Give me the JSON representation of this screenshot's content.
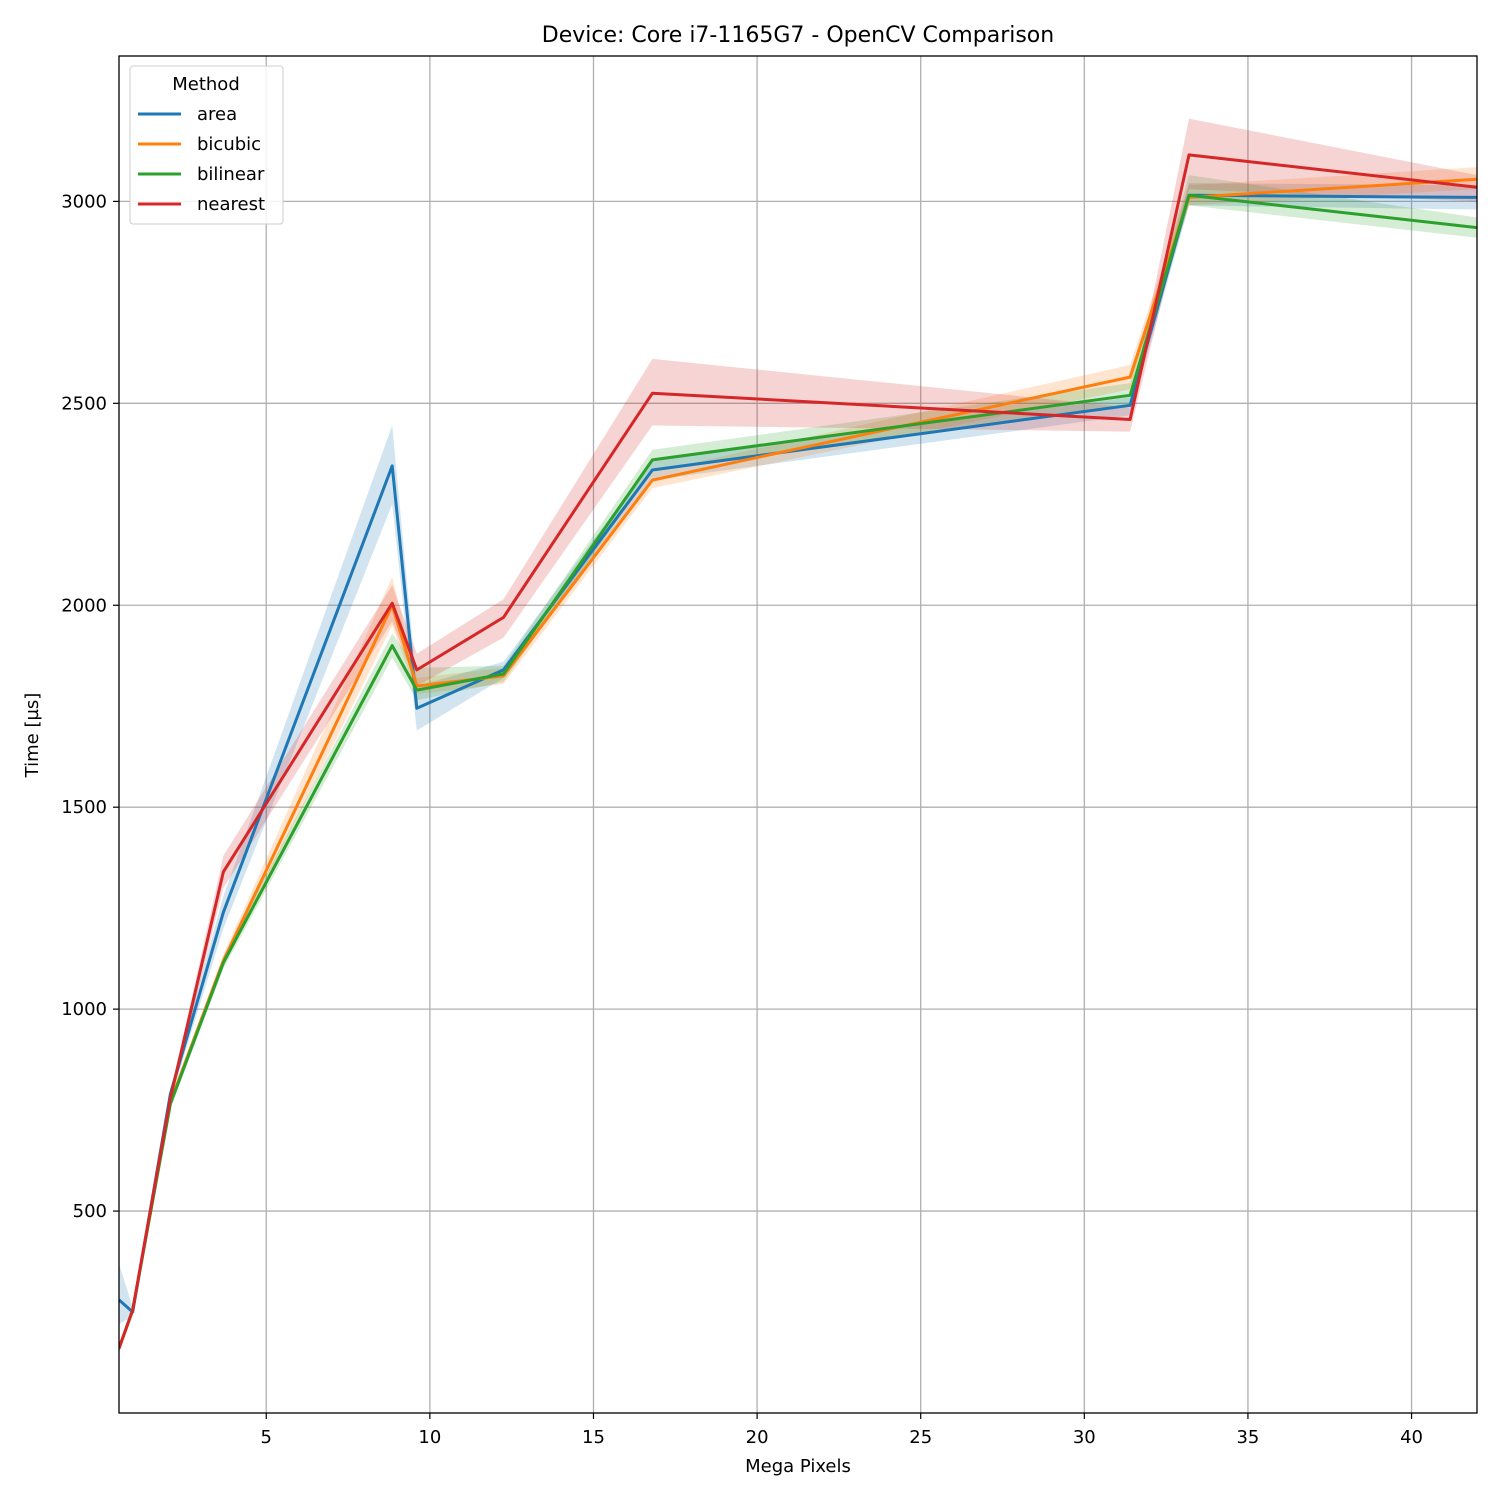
{
  "chart_data": {
    "type": "line",
    "title": "Device: Core i7-1165G7 - OpenCV Comparison",
    "xlabel": "Mega Pixels",
    "ylabel": "Time [µs]",
    "xlim": [
      0.5,
      42
    ],
    "ylim": [
      0,
      3360
    ],
    "xticks": [
      5,
      10,
      15,
      20,
      25,
      30,
      35,
      40
    ],
    "yticks": [
      500,
      1000,
      1500,
      2000,
      2500,
      3000
    ],
    "grid": true,
    "legend": {
      "title": "Method",
      "position": "top-left"
    },
    "series": [
      {
        "name": "area",
        "color": "#1f77b4",
        "x": [
          0.5,
          0.92,
          2.07,
          3.69,
          8.85,
          9.6,
          12.25,
          16.8,
          31.4,
          33.2,
          42
        ],
        "y": [
          280,
          250,
          790,
          1240,
          2345,
          1745,
          1840,
          2335,
          2495,
          3015,
          3010
        ],
        "lower": [
          220,
          240,
          775,
          1200,
          2250,
          1690,
          1820,
          2310,
          2470,
          2990,
          2980
        ],
        "upper": [
          370,
          262,
          805,
          1280,
          2445,
          1800,
          1860,
          2360,
          2515,
          3045,
          3040
        ]
      },
      {
        "name": "bicubic",
        "color": "#ff7f0e",
        "x": [
          0.5,
          0.92,
          2.07,
          3.69,
          8.85,
          9.6,
          12.25,
          16.8,
          31.4,
          33.2,
          42
        ],
        "y": [
          160,
          255,
          770,
          1120,
          2000,
          1800,
          1825,
          2310,
          2565,
          3010,
          3055
        ],
        "lower": [
          150,
          248,
          760,
          1105,
          1950,
          1780,
          1805,
          2290,
          2535,
          2990,
          3030
        ],
        "upper": [
          172,
          262,
          780,
          1135,
          2070,
          1820,
          1845,
          2330,
          2595,
          3040,
          3085
        ]
      },
      {
        "name": "bilinear",
        "color": "#2ca02c",
        "x": [
          0.5,
          0.92,
          2.07,
          3.69,
          8.85,
          9.6,
          12.25,
          16.8,
          31.4,
          33.2,
          42
        ],
        "y": [
          160,
          255,
          765,
          1115,
          1900,
          1790,
          1830,
          2360,
          2520,
          3015,
          2935
        ],
        "lower": [
          150,
          248,
          755,
          1100,
          1870,
          1765,
          1810,
          2335,
          2495,
          2990,
          2910
        ],
        "upper": [
          172,
          262,
          775,
          1130,
          1930,
          1845,
          1850,
          2385,
          2550,
          3065,
          2960
        ]
      },
      {
        "name": "nearest",
        "color": "#d62728",
        "x": [
          0.5,
          0.92,
          2.07,
          3.69,
          8.85,
          9.6,
          12.25,
          16.8,
          31.4,
          33.2,
          42
        ],
        "y": [
          160,
          255,
          780,
          1340,
          2005,
          1840,
          1970,
          2525,
          2460,
          3115,
          3035
        ],
        "lower": [
          150,
          248,
          770,
          1300,
          1960,
          1800,
          1920,
          2445,
          2430,
          3030,
          3000
        ],
        "upper": [
          172,
          262,
          792,
          1380,
          2050,
          1880,
          2015,
          2610,
          2490,
          3205,
          3065
        ]
      }
    ]
  }
}
